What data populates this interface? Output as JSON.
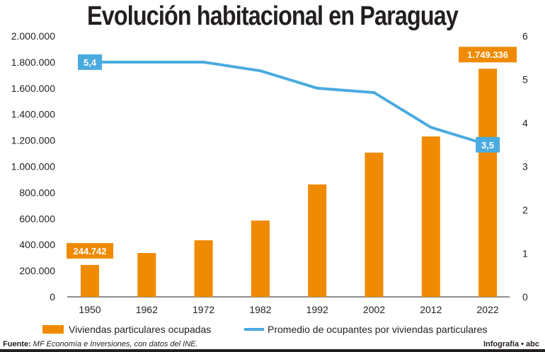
{
  "chart_data": {
    "type": "bar+line",
    "title": "Evolución habitacional en Paraguay",
    "categories": [
      "1950",
      "1962",
      "1972",
      "1982",
      "1992",
      "2002",
      "2012",
      "2022"
    ],
    "series": [
      {
        "name": "Viviendas particulares ocupadas",
        "type": "bar",
        "axis": "left",
        "color": "#f08a00",
        "values": [
          244742,
          336000,
          434000,
          585000,
          862000,
          1106000,
          1230000,
          1749336
        ]
      },
      {
        "name": "Promedio de ocupantes por viviendas particulares",
        "type": "line",
        "axis": "right",
        "color": "#4aabdf",
        "values": [
          5.4,
          5.4,
          5.4,
          5.2,
          4.8,
          4.7,
          3.9,
          3.5
        ]
      }
    ],
    "data_labels": [
      {
        "series": 0,
        "index": 0,
        "text": "244.742"
      },
      {
        "series": 0,
        "index": 7,
        "text": "1.749.336"
      },
      {
        "series": 1,
        "index": 0,
        "text": "5,4"
      },
      {
        "series": 1,
        "index": 7,
        "text": "3,5"
      }
    ],
    "ylim_left": [
      0,
      2000000
    ],
    "ylim_right": [
      0,
      6
    ],
    "left_ticks": [
      "0",
      "200.000",
      "400.000",
      "600.000",
      "800.000",
      "1.000.000",
      "1.200.000",
      "1.400.000",
      "1.600.000",
      "1.800.000",
      "2.000.000"
    ],
    "right_ticks": [
      "0",
      "1",
      "2",
      "3",
      "4",
      "5",
      "6"
    ],
    "grid": false,
    "legend_placement": "bottom"
  },
  "footer": {
    "source_label": "Fuente:",
    "source_text": "MF Economía e Inversiones, con datos del INE.",
    "credit": "Infografía • abc"
  }
}
